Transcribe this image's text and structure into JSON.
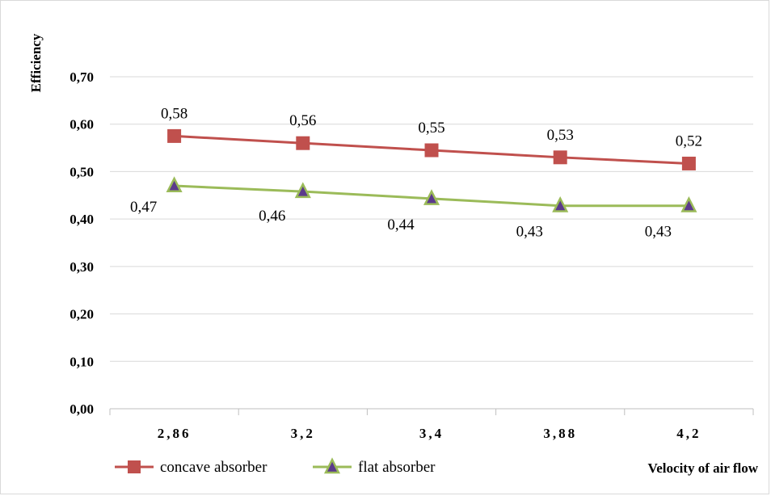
{
  "chart_data": {
    "type": "line",
    "categories": [
      "2,86",
      "3,2",
      "3,4",
      "3,88",
      "4,2"
    ],
    "xlabel": "Velocity of air flow",
    "ylabel": "Efficiency",
    "ylim": [
      0,
      0.7
    ],
    "yticks": [
      "0,00",
      "0,10",
      "0,20",
      "0,30",
      "0,40",
      "0,50",
      "0,60",
      "0,70"
    ],
    "grid": true,
    "legend_position": "bottom-left",
    "series": [
      {
        "name": "concave absorber",
        "values": [
          0.575,
          0.56,
          0.545,
          0.53,
          0.517
        ],
        "labels": [
          "0,58",
          "0,56",
          "0,55",
          "0,53",
          "0,52"
        ],
        "color": "#c0504d",
        "marker": "square"
      },
      {
        "name": "flat absorber",
        "values": [
          0.47,
          0.458,
          0.443,
          0.428,
          0.428
        ],
        "labels": [
          "0,47",
          "0,46",
          "0,44",
          "0,43",
          "0,43"
        ],
        "color": "#9bbb59",
        "marker_fill": "#5b3a8c",
        "marker": "triangle"
      }
    ]
  }
}
